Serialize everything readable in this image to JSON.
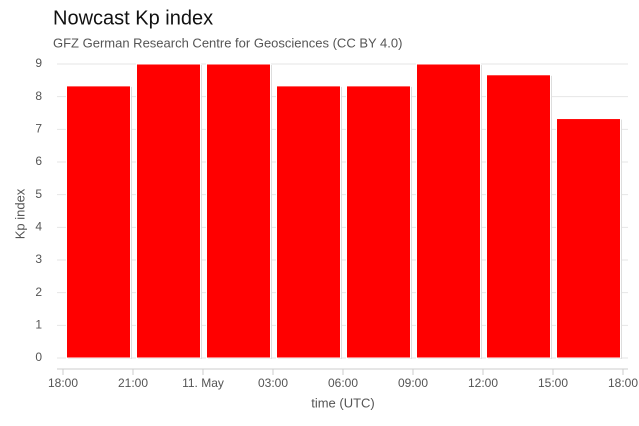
{
  "chart_data": {
    "type": "bar",
    "title": "Nowcast Kp index",
    "subtitle": "GFZ German Research Centre for Geosciences (CC BY 4.0)",
    "x_label": "time (UTC)",
    "y_label": "Kp index",
    "xticks": [
      "18:00",
      "21:00",
      "11. May",
      "03:00",
      "06:00",
      "09:00",
      "12:00",
      "15:00",
      "18:00"
    ],
    "values": [
      8.33,
      9,
      9,
      8.33,
      8.33,
      9,
      8.67,
      7.33
    ],
    "color": "#ff0000",
    "ylim": [
      0,
      9
    ],
    "yticks": [
      0,
      1,
      2,
      3,
      4,
      5,
      6,
      7,
      8,
      9
    ],
    "grid": true
  }
}
